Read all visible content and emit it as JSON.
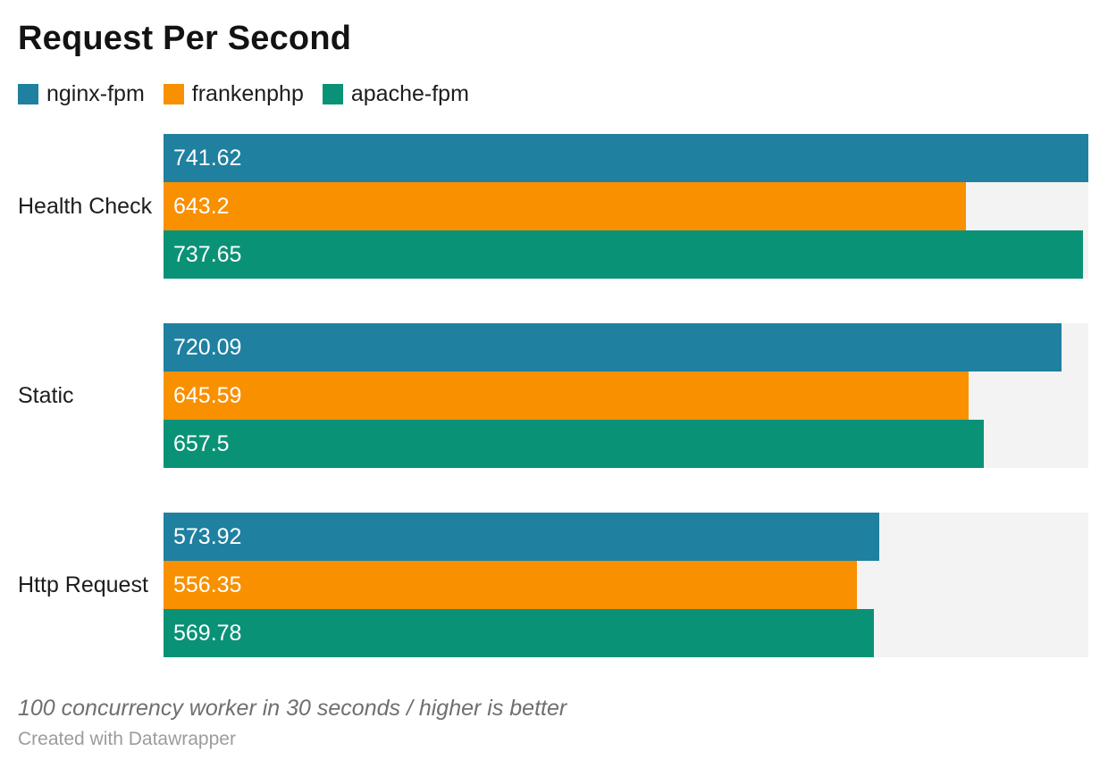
{
  "title": "Request Per Second",
  "chart_data": {
    "type": "bar",
    "orientation": "horizontal",
    "grouped": true,
    "title": "Request Per Second",
    "categories": [
      "Health Check",
      "Static",
      "Http Request"
    ],
    "series": [
      {
        "name": "nginx-fpm",
        "color": "#1f80a0",
        "values": [
          741.62,
          720.09,
          573.92
        ]
      },
      {
        "name": "frankenphp",
        "color": "#f89000",
        "values": [
          643.2,
          645.59,
          556.35
        ]
      },
      {
        "name": "apache-fpm",
        "color": "#0a9277",
        "values": [
          737.65,
          657.5,
          569.78
        ]
      }
    ],
    "xlim": [
      0,
      741.62
    ],
    "value_labels": true,
    "legend_position": "top",
    "grid": false,
    "track_color": "#f2f3f2",
    "value_label_color": "#ffffff"
  },
  "footer": {
    "note": "100 concurrency worker in 30 seconds / higher is better",
    "credit": "Created with Datawrapper"
  }
}
